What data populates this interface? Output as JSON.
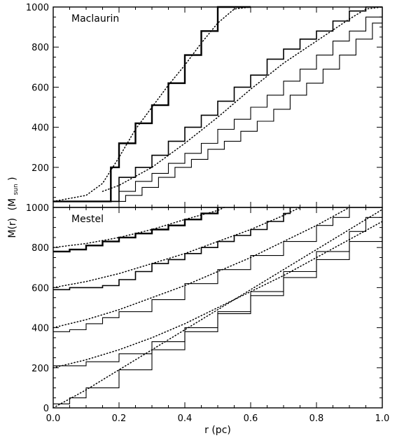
{
  "chart_data": [
    {
      "type": "line",
      "panel_label": "Maclaurin",
      "xlabel": "r (pc)",
      "ylabel_main": "M(r)",
      "ylabel_unit_open": "(M",
      "ylabel_unit_sub": "sun",
      "ylabel_unit_close": ")",
      "xlim": [
        0.0,
        1.0
      ],
      "ylim": [
        0,
        1000
      ],
      "xticks": [
        0.0,
        0.2,
        0.4,
        0.6,
        0.8,
        1.0
      ],
      "xtick_labels": [
        "0.0",
        "0.2",
        "0.4",
        "0.6",
        "0.8",
        "1.0"
      ],
      "yticks": [
        200,
        400,
        600,
        800,
        1000
      ],
      "ytick_labels": [
        "200",
        "400",
        "600",
        "800",
        "1000"
      ],
      "grid": false,
      "series": [
        {
          "style": "step",
          "weight": "thick",
          "x": [
            0.0,
            0.15,
            0.175,
            0.2,
            0.25,
            0.3,
            0.35,
            0.4,
            0.45,
            0.5,
            0.6
          ],
          "y": [
            30,
            30,
            200,
            320,
            420,
            510,
            620,
            760,
            880,
            1000,
            1000
          ]
        },
        {
          "style": "dotted",
          "x": [
            0.0,
            0.1,
            0.15,
            0.2,
            0.25,
            0.3,
            0.35,
            0.4,
            0.45,
            0.5,
            0.55,
            0.6
          ],
          "y": [
            30,
            60,
            120,
            250,
            390,
            500,
            610,
            710,
            820,
            920,
            990,
            1000
          ]
        },
        {
          "style": "step",
          "weight": "medium",
          "x": [
            0.0,
            0.15,
            0.2,
            0.25,
            0.3,
            0.35,
            0.4,
            0.45,
            0.5,
            0.55,
            0.6,
            0.65,
            0.7,
            0.75,
            0.8,
            0.85,
            0.9,
            0.95,
            1.0
          ],
          "y": [
            30,
            30,
            150,
            200,
            260,
            330,
            400,
            460,
            530,
            600,
            660,
            740,
            790,
            840,
            880,
            930,
            980,
            1000,
            1000
          ]
        },
        {
          "style": "dotted",
          "x": [
            0.15,
            0.2,
            0.3,
            0.4,
            0.5,
            0.6,
            0.7,
            0.8,
            0.9,
            0.95,
            1.0
          ],
          "y": [
            80,
            110,
            200,
            320,
            450,
            590,
            720,
            830,
            940,
            990,
            1000
          ]
        },
        {
          "style": "step",
          "weight": "thin",
          "x": [
            0.0,
            0.17,
            0.2,
            0.25,
            0.3,
            0.35,
            0.4,
            0.45,
            0.5,
            0.55,
            0.6,
            0.65,
            0.7,
            0.75,
            0.8,
            0.85,
            0.9,
            0.95,
            1.0
          ],
          "y": [
            30,
            30,
            80,
            130,
            170,
            220,
            270,
            320,
            390,
            440,
            500,
            560,
            630,
            690,
            760,
            830,
            880,
            950,
            1000
          ]
        },
        {
          "style": "step",
          "weight": "thin",
          "x": [
            0.0,
            0.18,
            0.22,
            0.27,
            0.32,
            0.37,
            0.42,
            0.47,
            0.52,
            0.57,
            0.62,
            0.67,
            0.72,
            0.77,
            0.82,
            0.87,
            0.92,
            0.97,
            1.0
          ],
          "y": [
            30,
            30,
            60,
            100,
            150,
            200,
            240,
            290,
            330,
            380,
            430,
            490,
            560,
            620,
            690,
            760,
            840,
            920,
            1000
          ]
        }
      ]
    },
    {
      "type": "line",
      "panel_label": "Mestel",
      "xlim": [
        0.0,
        1.0
      ],
      "ylim": [
        0,
        1000
      ],
      "xticks": [
        0.0,
        0.2,
        0.4,
        0.6,
        0.8,
        1.0
      ],
      "xtick_labels": [
        "0.0",
        "0.2",
        "0.4",
        "0.6",
        "0.8",
        "1.0"
      ],
      "yticks": [
        0,
        200,
        400,
        600,
        800,
        1000
      ],
      "ytick_labels": [
        "0",
        "200",
        "400",
        "600",
        "800",
        "1000"
      ],
      "grid": false,
      "series": [
        {
          "style": "step",
          "weight": "thick",
          "x": [
            0.0,
            0.05,
            0.1,
            0.15,
            0.2,
            0.25,
            0.3,
            0.35,
            0.4,
            0.45,
            0.5
          ],
          "y": [
            780,
            790,
            810,
            830,
            850,
            870,
            890,
            910,
            940,
            970,
            1000
          ]
        },
        {
          "style": "dotted",
          "x": [
            0.0,
            0.1,
            0.2,
            0.3,
            0.4,
            0.5,
            0.52
          ],
          "y": [
            800,
            820,
            850,
            890,
            940,
            985,
            1000
          ]
        },
        {
          "style": "step",
          "weight": "medium",
          "x": [
            0.0,
            0.05,
            0.15,
            0.2,
            0.25,
            0.3,
            0.35,
            0.4,
            0.45,
            0.5,
            0.55,
            0.6,
            0.65,
            0.7,
            0.72
          ],
          "y": [
            590,
            600,
            610,
            640,
            680,
            720,
            740,
            770,
            800,
            830,
            860,
            890,
            930,
            970,
            1000
          ]
        },
        {
          "style": "dotted",
          "x": [
            0.0,
            0.1,
            0.2,
            0.3,
            0.4,
            0.5,
            0.6,
            0.7,
            0.75
          ],
          "y": [
            600,
            630,
            670,
            720,
            770,
            830,
            890,
            960,
            1000
          ]
        },
        {
          "style": "step",
          "weight": "thin",
          "x": [
            0.0,
            0.05,
            0.1,
            0.15,
            0.2,
            0.3,
            0.4,
            0.5,
            0.6,
            0.7,
            0.8,
            0.85,
            0.9
          ],
          "y": [
            380,
            390,
            420,
            450,
            480,
            540,
            620,
            690,
            760,
            830,
            910,
            950,
            1000
          ]
        },
        {
          "style": "dotted",
          "x": [
            0.0,
            0.1,
            0.2,
            0.3,
            0.4,
            0.5,
            0.6,
            0.7,
            0.8,
            0.9
          ],
          "y": [
            400,
            440,
            490,
            550,
            610,
            680,
            750,
            830,
            910,
            1000
          ]
        },
        {
          "style": "step",
          "weight": "thin",
          "x": [
            0.0,
            0.1,
            0.2,
            0.3,
            0.4,
            0.5,
            0.6,
            0.7,
            0.8,
            0.9,
            1.0
          ],
          "y": [
            210,
            230,
            270,
            330,
            400,
            470,
            560,
            650,
            740,
            830,
            930
          ]
        },
        {
          "style": "dotted",
          "x": [
            0.0,
            0.1,
            0.2,
            0.3,
            0.4,
            0.5,
            0.6,
            0.7,
            0.8,
            0.9,
            1.0
          ],
          "y": [
            200,
            240,
            290,
            350,
            420,
            500,
            580,
            660,
            750,
            840,
            930
          ]
        },
        {
          "style": "step",
          "weight": "thin",
          "x": [
            0.0,
            0.05,
            0.1,
            0.2,
            0.3,
            0.4,
            0.5,
            0.6,
            0.7,
            0.8,
            0.9,
            0.95,
            1.0
          ],
          "y": [
            20,
            50,
            100,
            190,
            290,
            380,
            480,
            580,
            680,
            780,
            880,
            950,
            1000
          ]
        },
        {
          "style": "dotted",
          "x": [
            0.0,
            0.1,
            0.2,
            0.3,
            0.4,
            0.5,
            0.6,
            0.7,
            0.8,
            0.9,
            1.0
          ],
          "y": [
            0,
            90,
            190,
            290,
            390,
            490,
            590,
            690,
            790,
            890,
            990
          ]
        }
      ]
    }
  ]
}
